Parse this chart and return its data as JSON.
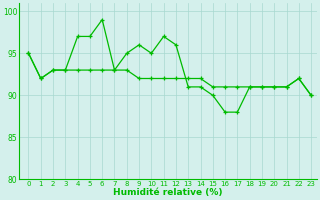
{
  "x": [
    0,
    1,
    2,
    3,
    4,
    5,
    6,
    7,
    8,
    9,
    10,
    11,
    12,
    13,
    14,
    15,
    16,
    17,
    18,
    19,
    20,
    21,
    22,
    23
  ],
  "series1": [
    95,
    92,
    93,
    93,
    97,
    97,
    99,
    93,
    95,
    96,
    95,
    97,
    96,
    91,
    91,
    90,
    88,
    88,
    91,
    91,
    91,
    91,
    92,
    90
  ],
  "series2": [
    95,
    92,
    93,
    93,
    93,
    93,
    93,
    93,
    93,
    92,
    92,
    92,
    92,
    92,
    92,
    91,
    91,
    91,
    91,
    91,
    91,
    91,
    92,
    90
  ],
  "xlabel": "Humidité relative (%)",
  "ylim": [
    80,
    101
  ],
  "yticks": [
    80,
    85,
    90,
    95,
    100
  ],
  "xticks": [
    0,
    1,
    2,
    3,
    4,
    5,
    6,
    7,
    8,
    9,
    10,
    11,
    12,
    13,
    14,
    15,
    16,
    17,
    18,
    19,
    20,
    21,
    22,
    23
  ],
  "line_color": "#00bb00",
  "bg_color": "#d4f0ec",
  "grid_color": "#a8d8d0"
}
